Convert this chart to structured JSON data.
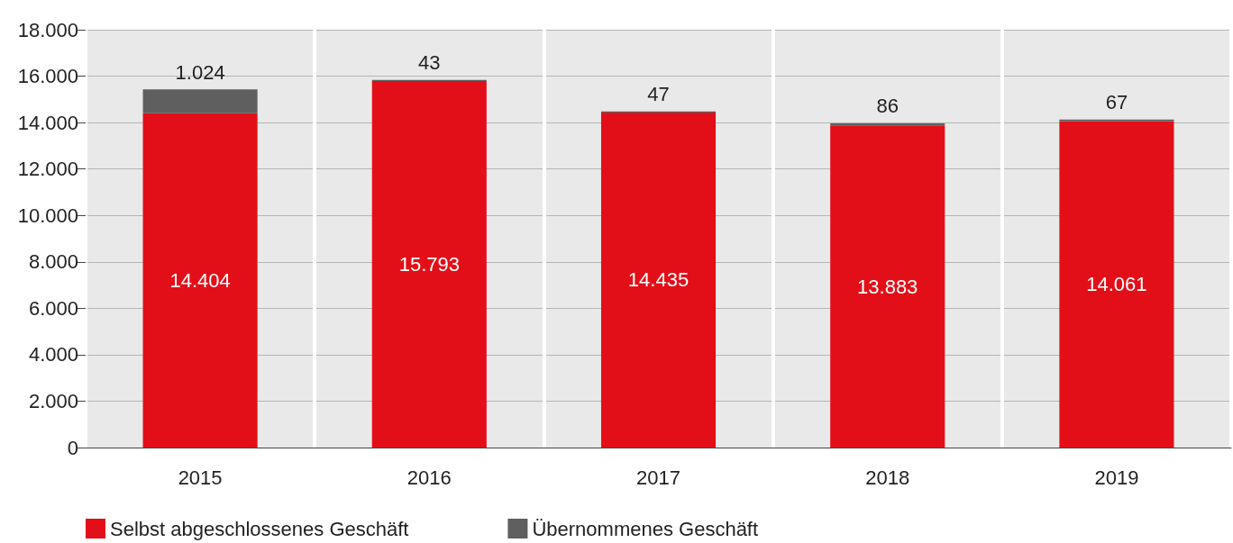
{
  "chart_data": {
    "type": "bar",
    "stacked": true,
    "categories": [
      "2015",
      "2016",
      "2017",
      "2018",
      "2019"
    ],
    "series": [
      {
        "name": "Selbst abgeschlossenes Geschäft",
        "color": "#e30f18",
        "values": [
          14404,
          15793,
          14435,
          13883,
          14061
        ],
        "value_labels": [
          "14.404",
          "15.793",
          "14.435",
          "13.883",
          "14.061"
        ]
      },
      {
        "name": "Übernommenes Geschäft",
        "color": "#5f5f5f",
        "values": [
          1024,
          43,
          47,
          86,
          67
        ],
        "value_labels": [
          "1.024",
          "43",
          "47",
          "86",
          "67"
        ]
      }
    ],
    "ylim": [
      0,
      18000
    ],
    "yticks": [
      0,
      {
        "value": 2000,
        "label": "2.000"
      },
      {
        "value": 4000,
        "label": "4.000"
      },
      {
        "value": 6000,
        "label": "6.000"
      },
      {
        "value": 8000,
        "label": "8.000"
      },
      {
        "value": 10000,
        "label": "10.000"
      },
      {
        "value": 12000,
        "label": "12.000"
      },
      {
        "value": 14000,
        "label": "14.000"
      },
      {
        "value": 16000,
        "label": "16.000"
      },
      {
        "value": 18000,
        "label": "18.000"
      }
    ],
    "grid": "y",
    "legend": "bottom left"
  }
}
